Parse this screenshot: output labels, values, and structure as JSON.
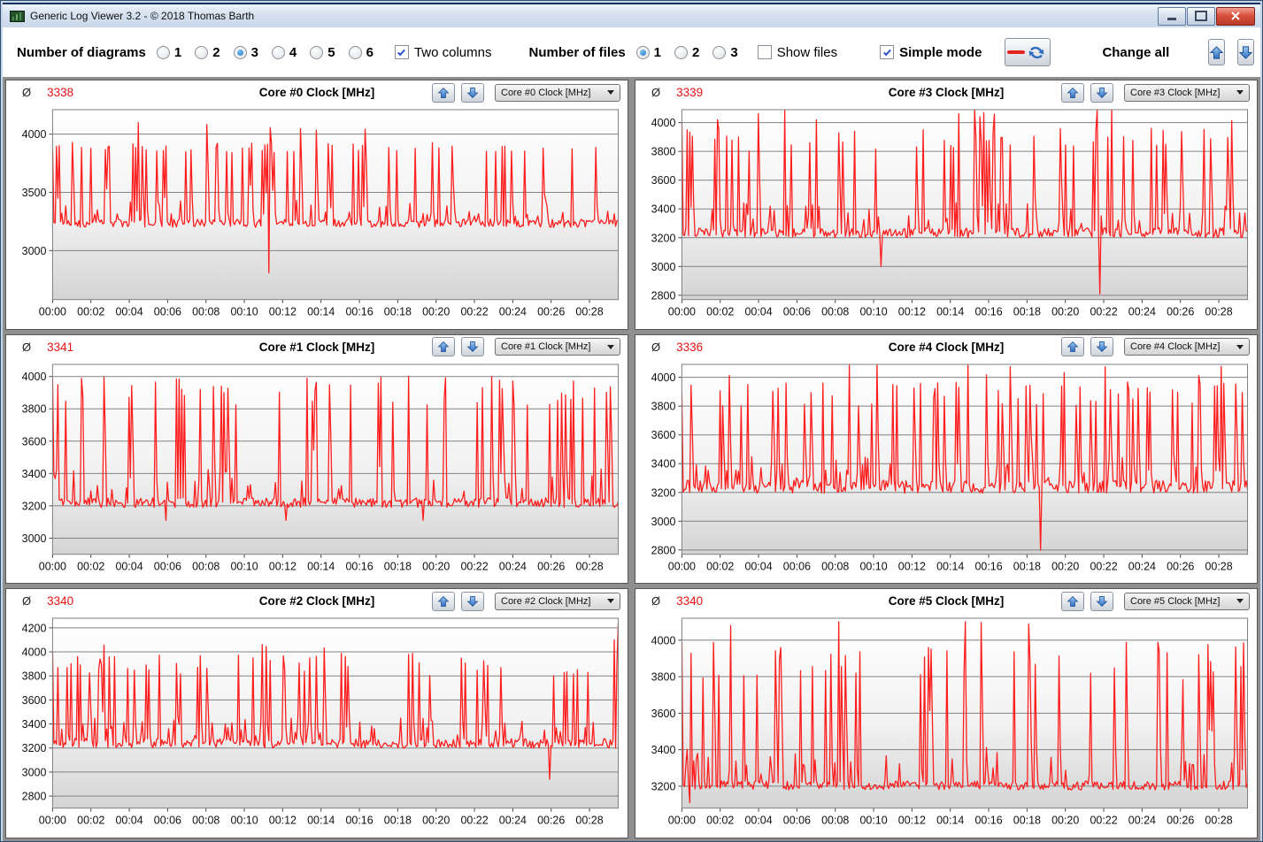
{
  "window": {
    "title": "Generic Log Viewer 3.2 - © 2018 Thomas Barth"
  },
  "toolbar": {
    "diagrams_label": "Number of diagrams",
    "diagram_options": [
      "1",
      "2",
      "3",
      "4",
      "5",
      "6"
    ],
    "diagrams_selected": "3",
    "two_columns_label": "Two columns",
    "two_columns_checked": true,
    "files_label": "Number of files",
    "file_options": [
      "1",
      "2",
      "3"
    ],
    "files_selected": "1",
    "show_files_label": "Show files",
    "show_files_checked": false,
    "simple_mode_label": "Simple mode",
    "simple_mode_checked": true,
    "change_all_label": "Change all",
    "legend_line_color": "#e32222",
    "arrow_blue": "#2e6ec2"
  },
  "panels_common": {
    "avg_symbol": "Ø",
    "x_total_minutes": 29.5,
    "xticks": [
      "00:00",
      "00:02",
      "00:04",
      "00:06",
      "00:08",
      "00:10",
      "00:12",
      "00:14",
      "00:16",
      "00:18",
      "00:20",
      "00:22",
      "00:24",
      "00:26",
      "00:28"
    ],
    "line_color": "#ff1e1e",
    "grid_color": "#828282",
    "avg_color": "#e81212"
  },
  "chart_data": [
    {
      "type": "line",
      "title": "Core #0 Clock [MHz]",
      "avg": "3338",
      "dropdown_value": "Core #0 Clock [MHz]",
      "yticks": [
        3000,
        3500,
        4000
      ],
      "ylim": [
        2580,
        4210
      ],
      "x_range_minutes": [
        0,
        29.5
      ],
      "gen": {
        "seed": 11,
        "n": 430,
        "base": 3235,
        "jitter": 35,
        "spike_p": 0.115,
        "spike": [
          3840,
          3930
        ],
        "tall_p": 0.1,
        "tall": [
          4030,
          4100
        ],
        "specials": [
          [
            0.0,
            3870
          ],
          [
            0.35,
            3900
          ],
          [
            11.3,
            2810
          ]
        ]
      }
    },
    {
      "type": "line",
      "title": "Core #3 Clock [MHz]",
      "avg": "3339",
      "dropdown_value": "Core #3 Clock [MHz]",
      "yticks": [
        2800,
        3000,
        3200,
        3400,
        3600,
        3800,
        4000
      ],
      "ylim": [
        2770,
        4090
      ],
      "x_range_minutes": [
        0,
        29.5
      ],
      "gen": {
        "seed": 23,
        "n": 430,
        "base": 3235,
        "jitter": 35,
        "spike_p": 0.115,
        "spike": [
          3800,
          3960
        ],
        "tall_p": 0.12,
        "tall": [
          4000,
          4100
        ],
        "specials": [
          [
            0.0,
            4000
          ],
          [
            0.25,
            3950
          ],
          [
            10.4,
            3000
          ],
          [
            15.3,
            4110
          ],
          [
            21.8,
            2810
          ]
        ]
      }
    },
    {
      "type": "line",
      "title": "Core #1 Clock [MHz]",
      "avg": "3341",
      "dropdown_value": "Core #1 Clock [MHz]",
      "yticks": [
        3000,
        3200,
        3400,
        3600,
        3800,
        4000
      ],
      "ylim": [
        2900,
        4075
      ],
      "x_range_minutes": [
        0,
        29.5
      ],
      "gen": {
        "seed": 37,
        "n": 430,
        "base": 3220,
        "jitter": 30,
        "spike_p": 0.115,
        "spike": [
          3820,
          3990
        ],
        "tall_p": 0.05,
        "tall": [
          3990,
          4010
        ],
        "specials": [
          [
            0.0,
            3990
          ],
          [
            0.3,
            3950
          ],
          [
            5.9,
            3110
          ],
          [
            12.2,
            3110
          ],
          [
            19.3,
            3110
          ]
        ]
      }
    },
    {
      "type": "line",
      "title": "Core #4 Clock [MHz]",
      "avg": "3336",
      "dropdown_value": "Core #4 Clock [MHz]",
      "yticks": [
        2800,
        3000,
        3200,
        3400,
        3600,
        3800,
        4000
      ],
      "ylim": [
        2770,
        4090
      ],
      "x_range_minutes": [
        0,
        29.5
      ],
      "gen": {
        "seed": 51,
        "n": 430,
        "base": 3240,
        "jitter": 45,
        "spike_p": 0.12,
        "spike": [
          3800,
          3970
        ],
        "tall_p": 0.1,
        "tall": [
          4000,
          4100
        ],
        "specials": [
          [
            0.0,
            3890
          ],
          [
            14.9,
            4100
          ],
          [
            18.7,
            2800
          ]
        ]
      }
    },
    {
      "type": "line",
      "title": "Core #2 Clock [MHz]",
      "avg": "3340",
      "dropdown_value": "Core #2 Clock [MHz]",
      "yticks": [
        2800,
        3000,
        3200,
        3400,
        3600,
        3800,
        4000,
        4200
      ],
      "ylim": [
        2700,
        4280
      ],
      "x_range_minutes": [
        0,
        29.5
      ],
      "gen": {
        "seed": 67,
        "n": 430,
        "base": 3240,
        "jitter": 40,
        "spike_p": 0.115,
        "spike": [
          3800,
          3990
        ],
        "tall_p": 0.07,
        "tall": [
          4000,
          4060
        ],
        "specials": [
          [
            0.0,
            4000
          ],
          [
            0.3,
            3870
          ],
          [
            25.9,
            2940
          ],
          [
            29.3,
            4100
          ],
          [
            29.5,
            4240
          ]
        ]
      }
    },
    {
      "type": "line",
      "title": "Core #5 Clock [MHz]",
      "avg": "3340",
      "dropdown_value": "Core #5 Clock [MHz]",
      "yticks": [
        3200,
        3400,
        3600,
        3800,
        4000
      ],
      "ylim": [
        3080,
        4120
      ],
      "x_range_minutes": [
        0,
        29.5
      ],
      "gen": {
        "seed": 83,
        "n": 430,
        "base": 3205,
        "jitter": 25,
        "spike_p": 0.13,
        "spike": [
          3780,
          3990
        ],
        "tall_p": 0.09,
        "tall": [
          4020,
          4100
        ],
        "specials": [
          [
            0.0,
            3990
          ],
          [
            0.4,
            3110
          ],
          [
            8.2,
            4100
          ],
          [
            14.8,
            4100
          ]
        ]
      }
    }
  ]
}
